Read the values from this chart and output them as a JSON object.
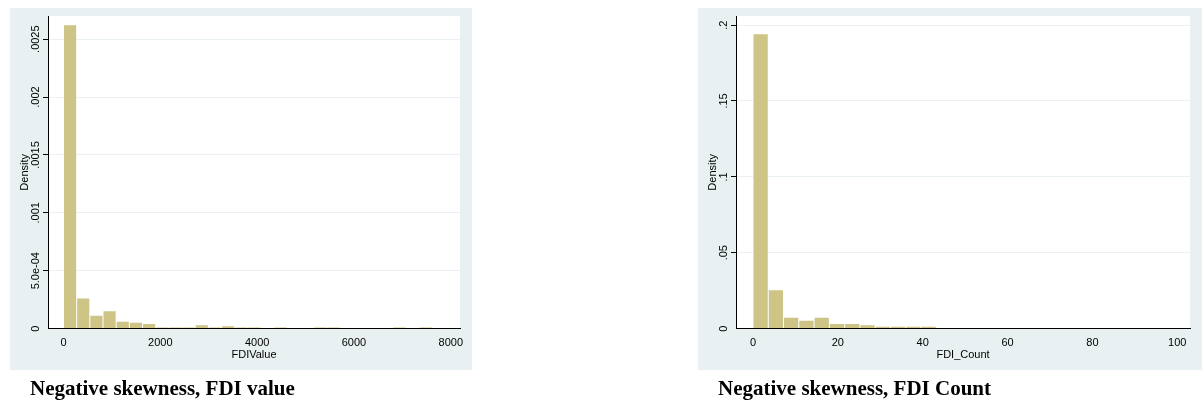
{
  "chart_data": [
    {
      "type": "histogram",
      "title": "Negative skewness, FDI value",
      "xlabel": "FDIValue",
      "ylabel": "Density",
      "color": "#cdc486",
      "grid": "y",
      "bins": [
        0,
        272,
        544,
        816,
        1088,
        1360,
        1632,
        1904,
        2176,
        2448,
        2720,
        2992,
        3264,
        3536,
        3808,
        4080,
        4352,
        4624,
        4896,
        5168,
        5440,
        5712,
        5984,
        6256,
        6528,
        6800,
        7072,
        7344,
        7616
      ],
      "values": [
        0.00262,
        0.00026,
        0.00011,
        0.00015,
        6e-05,
        5e-05,
        4e-05,
        1e-05,
        1e-05,
        1e-05,
        3e-05,
        1e-05,
        2e-05,
        1e-05,
        1e-05,
        0,
        1e-05,
        0,
        0,
        1e-05,
        1e-05,
        0,
        0,
        0,
        0,
        1e-05,
        0,
        1e-05
      ],
      "xlim": [
        -320,
        8190
      ],
      "xticks": [
        0,
        2000,
        4000,
        6000,
        8000
      ],
      "ylim": [
        0,
        0.0027
      ],
      "yticks": [
        0,
        {
          "value": 0.0005,
          "label": "5.0e-04"
        },
        {
          "value": 0.001,
          "label": ".001"
        },
        {
          "value": 0.0015,
          "label": ".0015"
        },
        {
          "value": 0.002,
          "label": ".002"
        },
        {
          "value": 0.0025,
          "label": ".0025"
        }
      ]
    },
    {
      "type": "histogram",
      "title": "Negative skewness, FDI Count",
      "xlabel": "FDI_Count",
      "ylabel": "Density",
      "color": "#cdc486",
      "grid": "y",
      "bins": [
        0,
        3.6,
        7.2,
        10.8,
        14.4,
        18,
        21.6,
        25.2,
        28.8,
        32.4,
        36,
        39.6,
        43.2,
        46.8,
        50.4,
        54,
        57.6,
        61.2,
        64.8,
        68.4,
        72,
        75.6,
        79.2,
        82.8,
        86.4,
        90,
        93.6,
        97.2,
        100.8
      ],
      "values": [
        0.194,
        0.0253,
        0.0072,
        0.0052,
        0.0072,
        0.0031,
        0.0031,
        0.0022,
        0.0013,
        0.0013,
        0.0013,
        0.0013,
        0.0004,
        0.0004,
        0.0004,
        0.0004,
        0.0004,
        0.0004,
        0,
        0.0004,
        0,
        0,
        0,
        0,
        0,
        0.0004,
        0,
        0.0004
      ],
      "xlim": [
        -4,
        103
      ],
      "xticks": [
        0,
        20,
        40,
        60,
        80,
        100
      ],
      "ylim": [
        0,
        0.206
      ],
      "yticks": [
        0,
        {
          "value": 0.05,
          "label": ".05"
        },
        {
          "value": 0.1,
          "label": ".1"
        },
        {
          "value": 0.15,
          "label": ".15"
        },
        {
          "value": 0.2,
          "label": ".2"
        }
      ]
    }
  ]
}
